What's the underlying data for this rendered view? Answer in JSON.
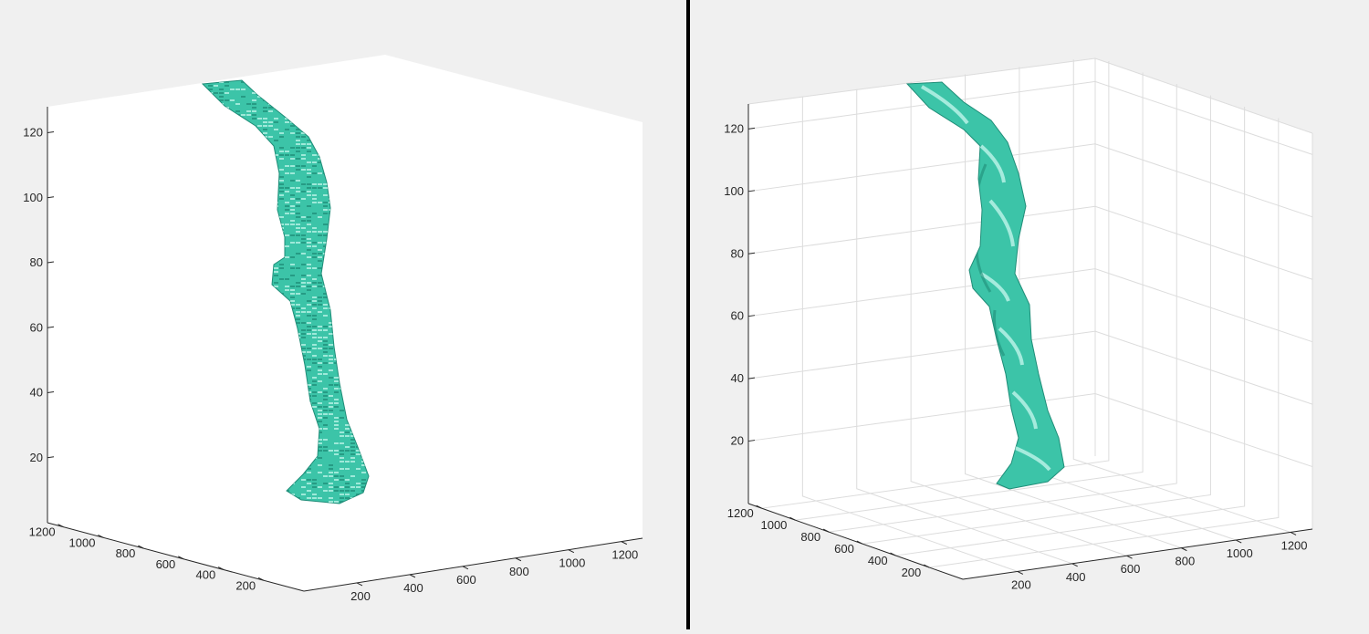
{
  "figure": {
    "colors": {
      "background": "#f0f0f0",
      "axes_background": "#ffffff",
      "surface": "#3cc4a8",
      "surface_light": "#bff5ea",
      "surface_dark": "#1f8d78",
      "axis_line": "#262626",
      "grid": "#dcdcdc",
      "divider": "#000000"
    }
  },
  "chart_data": [
    {
      "type": "3d-voxel-isosurface",
      "panel": "left",
      "style": "voxel (blocky) isosurface",
      "grid": false,
      "box": true,
      "zlim": [
        0,
        128
      ],
      "xlim": [
        0,
        1280
      ],
      "ylim": [
        0,
        1280
      ],
      "z_ticks": [
        20,
        40,
        60,
        80,
        100,
        120
      ],
      "x_ticks": [
        200,
        400,
        600,
        800,
        1000,
        1200
      ],
      "y_ticks": [
        200,
        400,
        600,
        800,
        1000,
        1200
      ],
      "z_tick_labels": [
        "20",
        "40",
        "60",
        "80",
        "100",
        "120"
      ],
      "x_tick_labels": [
        "200",
        "400",
        "600",
        "800",
        "1000",
        "1200"
      ],
      "y_tick_labels": [
        "200",
        "400",
        "600",
        "800",
        "1000",
        "1200"
      ]
    },
    {
      "type": "3d-smooth-isosurface",
      "panel": "right",
      "style": "smoothed shaded isosurface",
      "grid": true,
      "box": false,
      "zlim": [
        0,
        128
      ],
      "xlim": [
        0,
        1280
      ],
      "ylim": [
        0,
        1280
      ],
      "z_ticks": [
        20,
        40,
        60,
        80,
        100,
        120
      ],
      "x_ticks": [
        200,
        400,
        600,
        800,
        1000,
        1200
      ],
      "y_ticks": [
        200,
        400,
        600,
        800,
        1000,
        1200
      ],
      "z_tick_labels": [
        "20",
        "40",
        "60",
        "80",
        "100",
        "120"
      ],
      "x_tick_labels": [
        "200",
        "400",
        "600",
        "800",
        "1000",
        "1200"
      ],
      "y_tick_labels": [
        "200",
        "400",
        "600",
        "800",
        "1000",
        "1200"
      ]
    }
  ]
}
